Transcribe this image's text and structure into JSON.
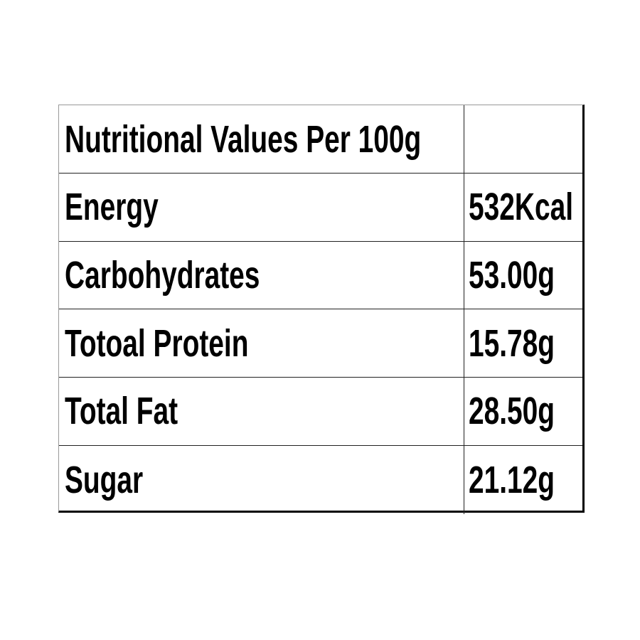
{
  "table": {
    "title": "Nutritional Values Per 100g",
    "rows": [
      [
        "Energy",
        "532Kcal"
      ],
      [
        "Carbohydrates",
        "53.00g"
      ],
      [
        "Totoal Protein",
        "15.78g"
      ],
      [
        "Total Fat",
        "28.50g"
      ],
      [
        "Sugar",
        "21.12g"
      ]
    ]
  }
}
